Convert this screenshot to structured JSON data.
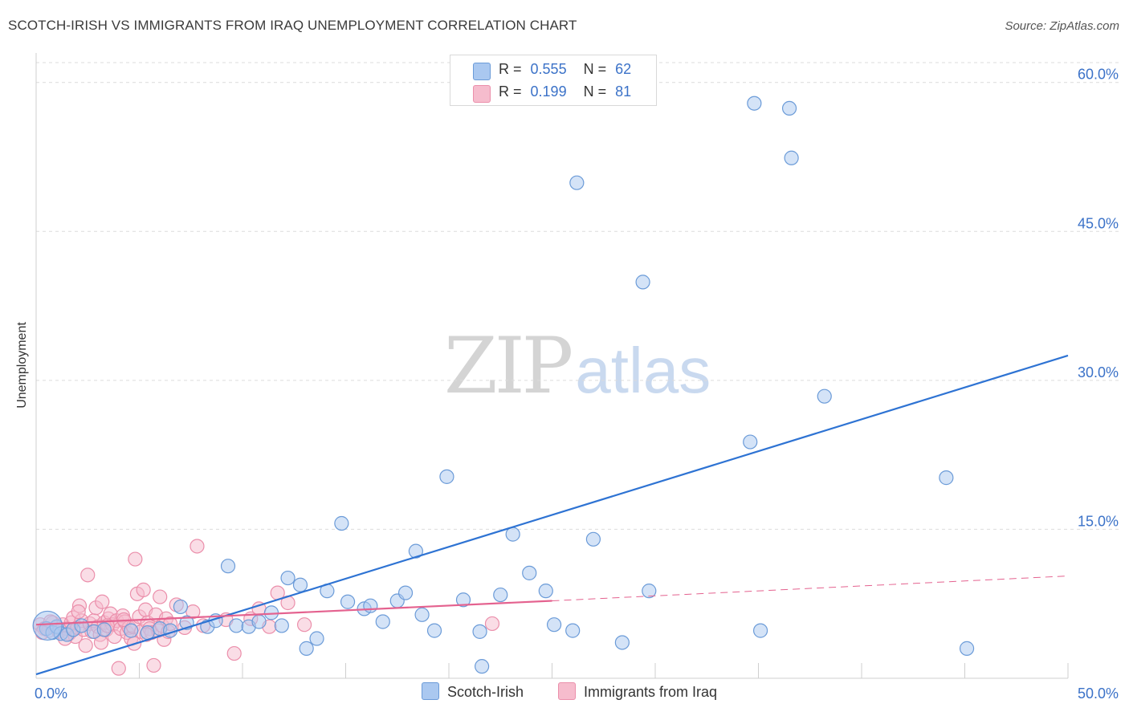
{
  "title": "SCOTCH-IRISH VS IMMIGRANTS FROM IRAQ UNEMPLOYMENT CORRELATION CHART",
  "source": "Source: ZipAtlas.com",
  "watermark": {
    "zip": "ZIP",
    "atlas": "atlas"
  },
  "legend_top": {
    "rows": [
      {
        "r_label": "R =",
        "r_value": "0.555",
        "n_label": "N =",
        "n_value": "62"
      },
      {
        "r_label": "R =",
        "r_value": "0.199",
        "n_label": "N =",
        "n_value": "81"
      }
    ]
  },
  "colors": {
    "blue_fill": "#aac8f0",
    "blue_stroke": "#6b9bd8",
    "blue_line": "#2e73d3",
    "pink_fill": "#f6bccd",
    "pink_stroke": "#eb8fab",
    "pink_line": "#e4628f",
    "grid": "#dcdcdc",
    "tick_label": "#3b72c8"
  },
  "chart_data": {
    "type": "scatter",
    "title": "SCOTCH-IRISH VS IMMIGRANTS FROM IRAQ UNEMPLOYMENT CORRELATION CHART",
    "xlabel": "",
    "ylabel": "Unemployment",
    "xlim": [
      0,
      50
    ],
    "ylim": [
      0,
      62
    ],
    "x_tick_labels": [
      {
        "value": 0,
        "label": "0.0%"
      },
      {
        "value": 50,
        "label": "50.0%"
      }
    ],
    "y_tick_labels": [
      {
        "value": 15,
        "label": "15.0%"
      },
      {
        "value": 30,
        "label": "30.0%"
      },
      {
        "value": 45,
        "label": "45.0%"
      },
      {
        "value": 60,
        "label": "60.0%"
      }
    ],
    "grid": true,
    "legend_position": "bottom",
    "series": [
      {
        "name": "Scotch-Irish",
        "color": "#6b9bd8",
        "points": [
          [
            0.5,
            5.0
          ],
          [
            0.8,
            4.6
          ],
          [
            1.0,
            5.2
          ],
          [
            1.2,
            4.5
          ],
          [
            1.5,
            4.4
          ],
          [
            1.8,
            4.9
          ],
          [
            2.2,
            5.3
          ],
          [
            2.8,
            4.7
          ],
          [
            3.3,
            4.9
          ],
          [
            4.6,
            4.8
          ],
          [
            5.4,
            4.6
          ],
          [
            6.0,
            5.0
          ],
          [
            6.5,
            4.8
          ],
          [
            7.0,
            7.2
          ],
          [
            7.3,
            5.6
          ],
          [
            8.3,
            5.2
          ],
          [
            8.7,
            5.8
          ],
          [
            9.3,
            11.3
          ],
          [
            9.7,
            5.3
          ],
          [
            10.3,
            5.2
          ],
          [
            10.8,
            5.7
          ],
          [
            11.4,
            6.6
          ],
          [
            11.9,
            5.3
          ],
          [
            12.2,
            10.1
          ],
          [
            12.8,
            9.4
          ],
          [
            13.1,
            3.0
          ],
          [
            13.6,
            4.0
          ],
          [
            14.1,
            8.8
          ],
          [
            14.8,
            15.6
          ],
          [
            15.1,
            7.7
          ],
          [
            15.9,
            7.0
          ],
          [
            16.2,
            7.3
          ],
          [
            16.8,
            5.7
          ],
          [
            17.5,
            7.8
          ],
          [
            17.9,
            8.6
          ],
          [
            18.4,
            12.8
          ],
          [
            18.7,
            6.4
          ],
          [
            19.3,
            4.8
          ],
          [
            19.9,
            20.3
          ],
          [
            20.7,
            7.9
          ],
          [
            21.5,
            4.7
          ],
          [
            21.6,
            1.2
          ],
          [
            22.5,
            8.4
          ],
          [
            23.1,
            14.5
          ],
          [
            23.9,
            10.6
          ],
          [
            24.7,
            8.8
          ],
          [
            25.1,
            5.4
          ],
          [
            26.0,
            4.8
          ],
          [
            26.2,
            49.9
          ],
          [
            27.0,
            14.0
          ],
          [
            28.4,
            3.6
          ],
          [
            29.4,
            39.9
          ],
          [
            29.7,
            8.8
          ],
          [
            34.6,
            23.8
          ],
          [
            34.8,
            57.9
          ],
          [
            35.1,
            4.8
          ],
          [
            36.5,
            57.4
          ],
          [
            36.6,
            52.4
          ],
          [
            38.2,
            28.4
          ],
          [
            44.1,
            20.2
          ],
          [
            45.1,
            3.0
          ],
          [
            0.55,
            5.3,
            "large"
          ]
        ]
      },
      {
        "name": "Immigrants from Iraq",
        "color": "#eb8fab",
        "points": [
          [
            0.2,
            5.4
          ],
          [
            0.4,
            5.0
          ],
          [
            0.6,
            4.8
          ],
          [
            0.8,
            5.6
          ],
          [
            1.0,
            5.1
          ],
          [
            1.1,
            4.7
          ],
          [
            1.3,
            5.4
          ],
          [
            1.5,
            5.0
          ],
          [
            1.6,
            4.5
          ],
          [
            1.7,
            5.6
          ],
          [
            1.8,
            6.1
          ],
          [
            1.9,
            4.2
          ],
          [
            2.0,
            5.1
          ],
          [
            2.1,
            7.3
          ],
          [
            2.2,
            5.8
          ],
          [
            2.3,
            4.9
          ],
          [
            2.4,
            3.3
          ],
          [
            2.5,
            10.4
          ],
          [
            2.6,
            5.5
          ],
          [
            2.7,
            4.7
          ],
          [
            2.8,
            5.8
          ],
          [
            2.9,
            7.1
          ],
          [
            3.0,
            5.2
          ],
          [
            3.1,
            4.4
          ],
          [
            3.2,
            7.7
          ],
          [
            3.3,
            5.6
          ],
          [
            3.4,
            4.9
          ],
          [
            3.5,
            6.0
          ],
          [
            3.6,
            6.5
          ],
          [
            3.7,
            5.4
          ],
          [
            3.8,
            4.2
          ],
          [
            3.9,
            5.8
          ],
          [
            4.0,
            1.0
          ],
          [
            4.1,
            5.0
          ],
          [
            4.2,
            6.3
          ],
          [
            4.3,
            5.7
          ],
          [
            4.4,
            4.6
          ],
          [
            4.5,
            5.1
          ],
          [
            4.6,
            4.0
          ],
          [
            4.7,
            5.2
          ],
          [
            4.8,
            12.0
          ],
          [
            4.9,
            8.5
          ],
          [
            5.0,
            6.2
          ],
          [
            5.1,
            4.7
          ],
          [
            5.2,
            8.9
          ],
          [
            5.3,
            6.9
          ],
          [
            5.4,
            5.6
          ],
          [
            5.5,
            5.0
          ],
          [
            5.6,
            4.6
          ],
          [
            5.7,
            1.3
          ],
          [
            5.8,
            6.4
          ],
          [
            5.9,
            4.8
          ],
          [
            6.0,
            8.2
          ],
          [
            6.1,
            5.3
          ],
          [
            6.2,
            3.9
          ],
          [
            6.3,
            6.0
          ],
          [
            6.4,
            4.7
          ],
          [
            6.5,
            5.5
          ],
          [
            6.8,
            7.4
          ],
          [
            7.2,
            5.1
          ],
          [
            7.6,
            6.7
          ],
          [
            7.8,
            13.3
          ],
          [
            8.1,
            5.3
          ],
          [
            9.2,
            5.9
          ],
          [
            9.6,
            2.5
          ],
          [
            10.4,
            6.0
          ],
          [
            10.8,
            7.0
          ],
          [
            11.3,
            5.2
          ],
          [
            11.7,
            8.6
          ],
          [
            12.2,
            7.6
          ],
          [
            13.0,
            5.4
          ],
          [
            22.1,
            5.5
          ],
          [
            0.3,
            4.6
          ],
          [
            0.7,
            5.7
          ],
          [
            1.4,
            4.0
          ],
          [
            2.05,
            6.7
          ],
          [
            3.15,
            3.6
          ],
          [
            3.45,
            5.3
          ],
          [
            4.25,
            5.9
          ],
          [
            4.75,
            3.5
          ],
          [
            5.35,
            4.4
          ]
        ]
      }
    ],
    "trendlines": [
      {
        "series": "Scotch-Irish",
        "style": "solid",
        "from": [
          0,
          0.4
        ],
        "to": [
          50,
          32.5
        ]
      },
      {
        "series": "Immigrants from Iraq",
        "style": "solid",
        "from": [
          0,
          5.4
        ],
        "to": [
          25,
          7.8
        ]
      },
      {
        "series": "Immigrants from Iraq",
        "style": "dashed",
        "from": [
          25,
          7.8
        ],
        "to": [
          50,
          10.3
        ]
      }
    ]
  },
  "legend_bottom": {
    "items": [
      "Scotch-Irish",
      "Immigrants from Iraq"
    ]
  }
}
